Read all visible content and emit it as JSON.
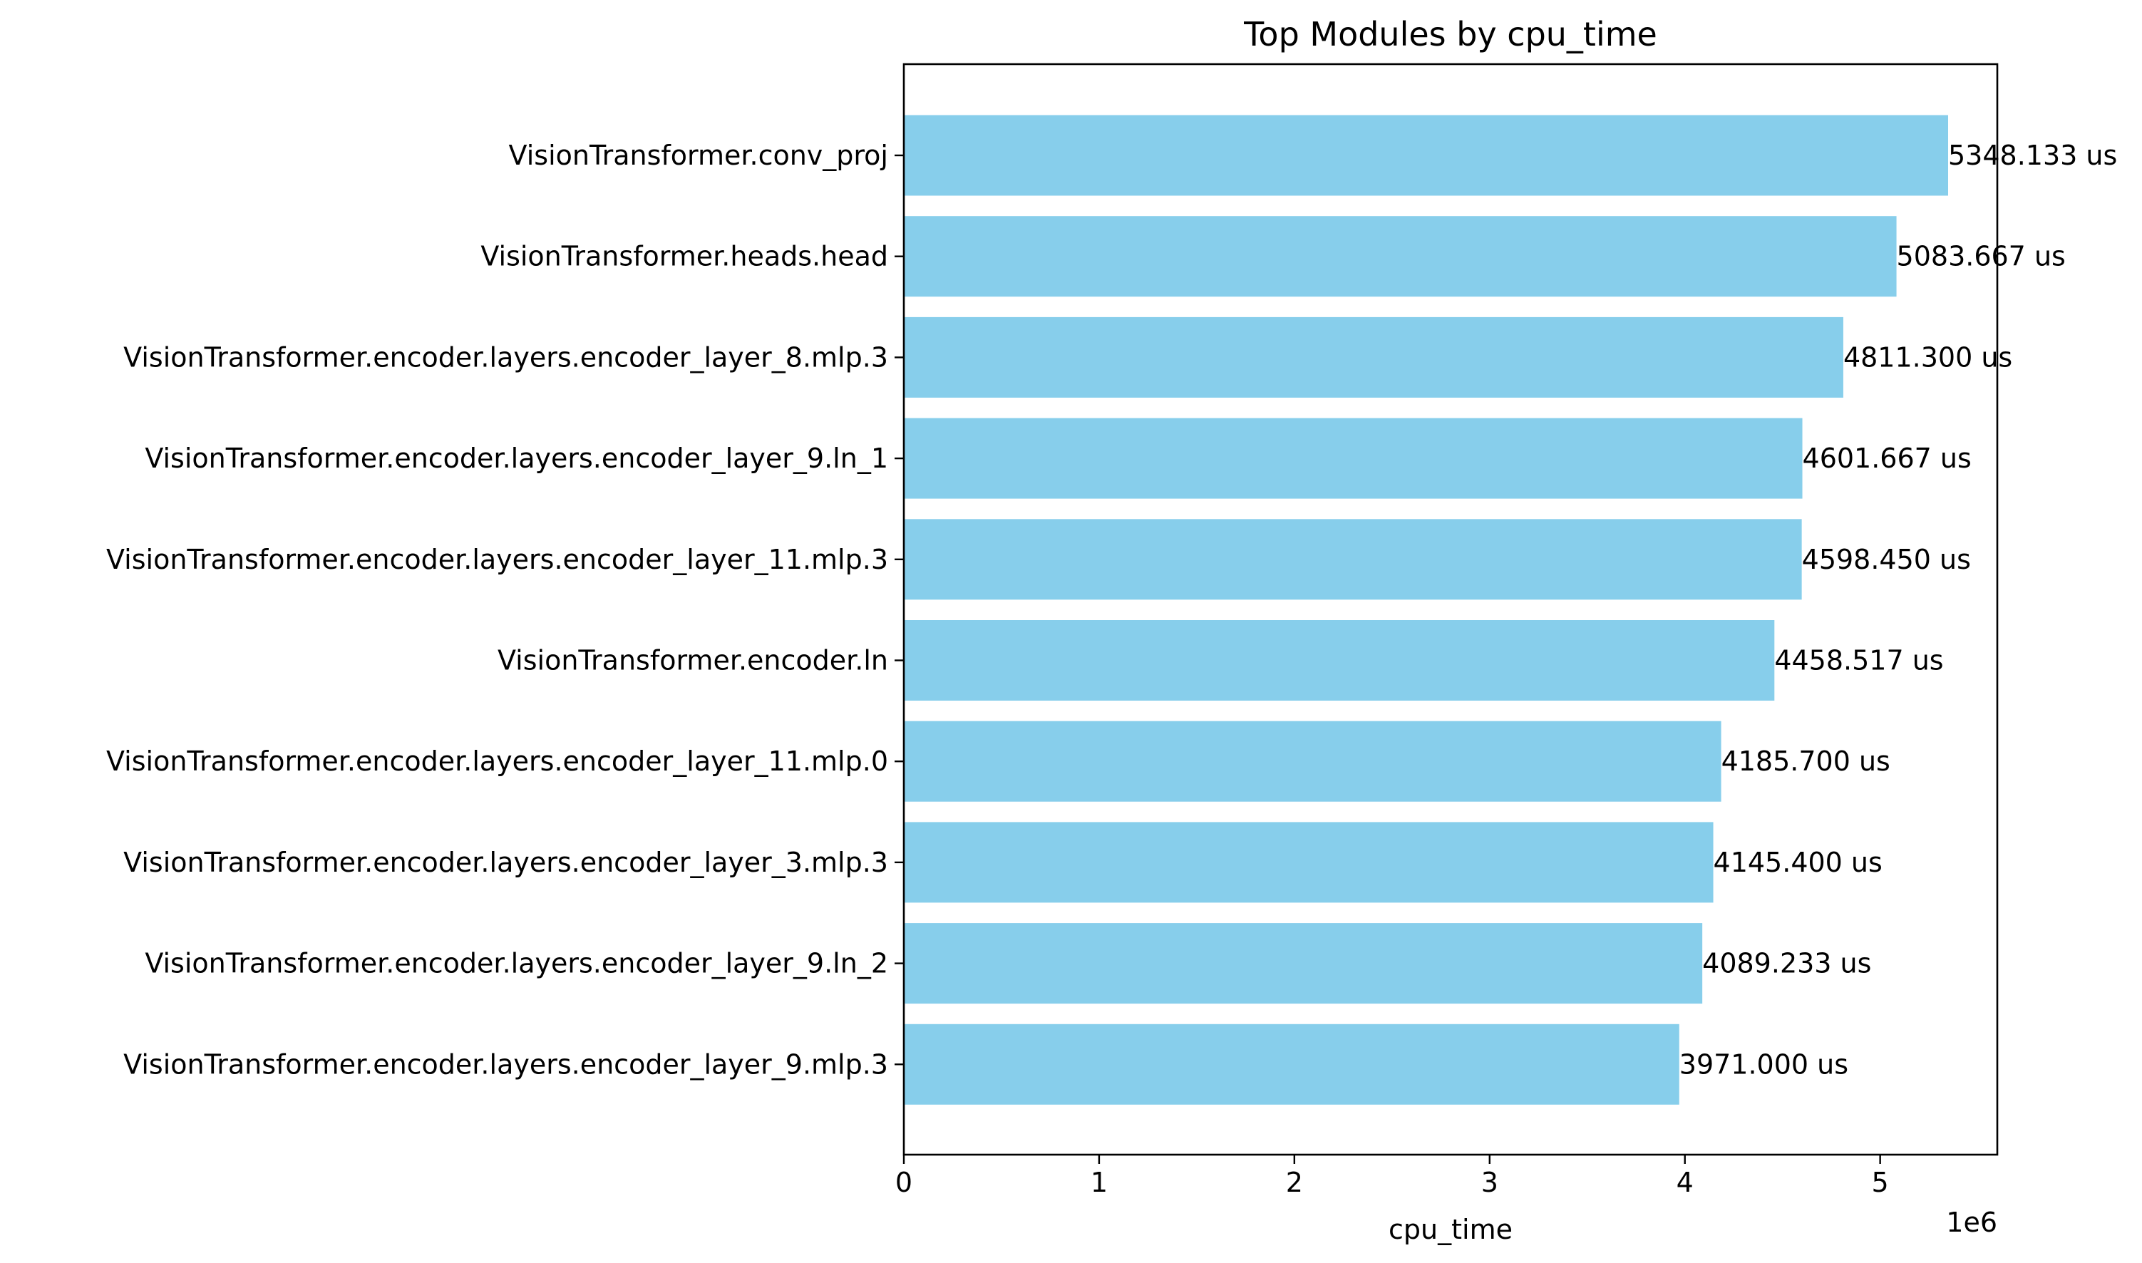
{
  "chart_data": {
    "type": "bar",
    "orientation": "horizontal",
    "title": "Top Modules by cpu_time",
    "xlabel": "cpu_time",
    "ylabel": "",
    "x_offset_label": "1e6",
    "xlim": [
      0,
      5.6
    ],
    "x_ticks": [
      0,
      1,
      2,
      3,
      4,
      5
    ],
    "x_tick_labels": [
      "0",
      "1",
      "2",
      "3",
      "4",
      "5"
    ],
    "grid": false,
    "legend": "none",
    "bar_color": "#87CEEB",
    "categories": [
      "VisionTransformer.conv_proj",
      "VisionTransformer.heads.head",
      "VisionTransformer.encoder.layers.encoder_layer_8.mlp.3",
      "VisionTransformer.encoder.layers.encoder_layer_9.ln_1",
      "VisionTransformer.encoder.layers.encoder_layer_11.mlp.3",
      "VisionTransformer.encoder.ln",
      "VisionTransformer.encoder.layers.encoder_layer_11.mlp.0",
      "VisionTransformer.encoder.layers.encoder_layer_3.mlp.3",
      "VisionTransformer.encoder.layers.encoder_layer_9.ln_2",
      "VisionTransformer.encoder.layers.encoder_layer_9.mlp.3"
    ],
    "values": [
      5348133,
      5083667,
      4811300,
      4601667,
      4598450,
      4458517,
      4185700,
      4145400,
      4089233,
      3971000
    ],
    "data_labels": [
      "5348.133 us",
      "5083.667 us",
      "4811.300 us",
      "4601.667 us",
      "4598.450 us",
      "4458.517 us",
      "4185.700 us",
      "4145.400 us",
      "4089.233 us",
      "3971.000 us"
    ]
  }
}
